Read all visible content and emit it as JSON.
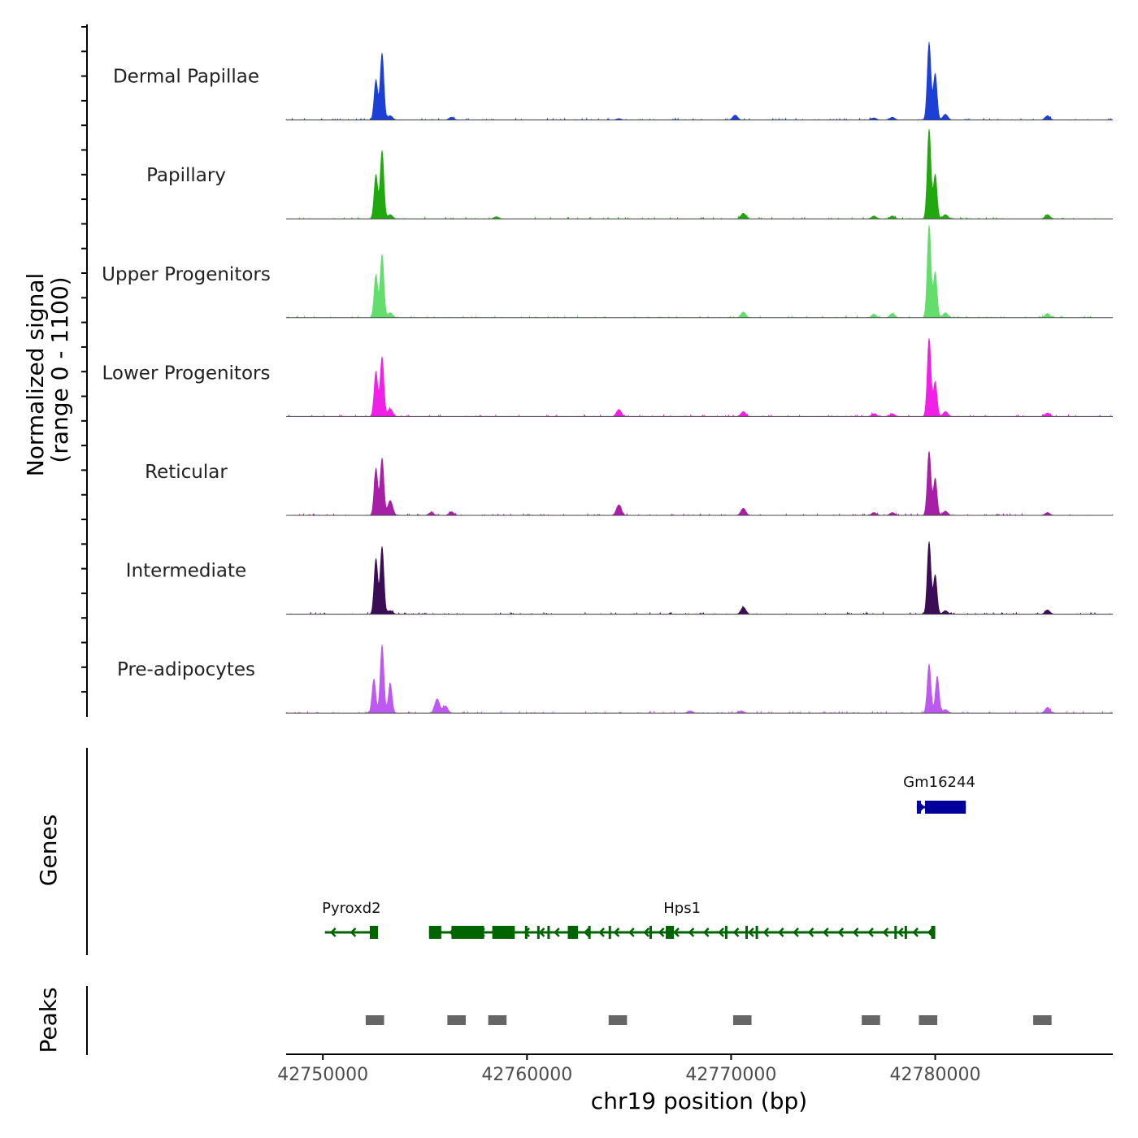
{
  "chart_data": {
    "type": "area",
    "title": "",
    "ylabel_line1": "Normalized signal",
    "ylabel_line2": "(range 0 - 1100)",
    "genes_label": "Genes",
    "peaks_label": "Peaks",
    "xlabel": "chr19 position (bp)",
    "chromosome": "chr19",
    "xlim": [
      42748200,
      42788700
    ],
    "ylim": [
      0,
      1100
    ],
    "x_ticks": [
      42750000,
      42760000,
      42770000,
      42780000
    ],
    "x_tick_labels": [
      "42750000",
      "42760000",
      "42770000",
      "42780000"
    ],
    "tracks": [
      {
        "name": "Dermal Papillae",
        "color": "#1c3fd6",
        "peaks": [
          [
            42752600,
            560
          ],
          [
            42752900,
            940
          ],
          [
            42753300,
            60
          ],
          [
            42756300,
            40
          ],
          [
            42764500,
            20
          ],
          [
            42770200,
            70
          ],
          [
            42777000,
            30
          ],
          [
            42777900,
            40
          ],
          [
            42779700,
            1080
          ],
          [
            42780000,
            650
          ],
          [
            42780500,
            80
          ],
          [
            42785500,
            60
          ]
        ]
      },
      {
        "name": "Papillary",
        "color": "#21a80f",
        "peaks": [
          [
            42752600,
            620
          ],
          [
            42752900,
            960
          ],
          [
            42753300,
            60
          ],
          [
            42758500,
            30
          ],
          [
            42770600,
            80
          ],
          [
            42777000,
            40
          ],
          [
            42777900,
            40
          ],
          [
            42779700,
            1260
          ],
          [
            42780000,
            620
          ],
          [
            42780500,
            60
          ],
          [
            42785500,
            60
          ]
        ]
      },
      {
        "name": "Upper Progenitors",
        "color": "#63dd6c",
        "peaks": [
          [
            42752600,
            600
          ],
          [
            42752900,
            890
          ],
          [
            42753300,
            70
          ],
          [
            42770600,
            80
          ],
          [
            42777000,
            50
          ],
          [
            42777900,
            60
          ],
          [
            42779700,
            1300
          ],
          [
            42780000,
            640
          ],
          [
            42780500,
            70
          ],
          [
            42785500,
            60
          ]
        ]
      },
      {
        "name": "Lower Progenitors",
        "color": "#f020e6",
        "peaks": [
          [
            42752600,
            630
          ],
          [
            42752900,
            840
          ],
          [
            42753300,
            110
          ],
          [
            42764500,
            100
          ],
          [
            42770600,
            70
          ],
          [
            42777000,
            40
          ],
          [
            42777900,
            40
          ],
          [
            42779700,
            1100
          ],
          [
            42780000,
            490
          ],
          [
            42780500,
            70
          ],
          [
            42785500,
            50
          ]
        ]
      },
      {
        "name": "Reticular",
        "color": "#a61fa6",
        "peaks": [
          [
            42752600,
            660
          ],
          [
            42752900,
            800
          ],
          [
            42753300,
            210
          ],
          [
            42755300,
            40
          ],
          [
            42756300,
            50
          ],
          [
            42764500,
            150
          ],
          [
            42770600,
            100
          ],
          [
            42777000,
            40
          ],
          [
            42777900,
            40
          ],
          [
            42779700,
            900
          ],
          [
            42780000,
            520
          ],
          [
            42780500,
            60
          ],
          [
            42785500,
            40
          ]
        ]
      },
      {
        "name": "Intermediate",
        "color": "#3b0d57",
        "peaks": [
          [
            42752600,
            780
          ],
          [
            42752900,
            950
          ],
          [
            42753300,
            50
          ],
          [
            42770600,
            100
          ],
          [
            42779700,
            1020
          ],
          [
            42780000,
            550
          ],
          [
            42780500,
            50
          ],
          [
            42785500,
            60
          ]
        ]
      },
      {
        "name": "Pre-adipocytes",
        "color": "#bd58f0",
        "peaks": [
          [
            42752500,
            480
          ],
          [
            42752900,
            960
          ],
          [
            42753300,
            420
          ],
          [
            42755600,
            200
          ],
          [
            42756000,
            100
          ],
          [
            42768000,
            30
          ],
          [
            42770500,
            30
          ],
          [
            42779700,
            690
          ],
          [
            42780100,
            520
          ],
          [
            42780500,
            50
          ],
          [
            42785500,
            80
          ]
        ]
      }
    ],
    "genes": [
      {
        "name": "Gm16244",
        "strand": "+",
        "start": 42779100,
        "end": 42781500,
        "color": "#00009c",
        "exons": [
          [
            42779100,
            42779300
          ],
          [
            42779500,
            42781500
          ]
        ]
      },
      {
        "name": "Pyroxd2",
        "strand": "-",
        "start": 42750100,
        "end": 42752700,
        "color": "#006400",
        "exons": [
          [
            42752300,
            42752700
          ]
        ]
      },
      {
        "name": "Hps1",
        "strand": "-",
        "start": 42755200,
        "end": 42780000,
        "color": "#006400",
        "exons": [
          [
            42755200,
            42755800
          ],
          [
            42756300,
            42757900
          ],
          [
            42758300,
            42759400
          ],
          [
            42759900,
            42760000
          ],
          [
            42760500,
            42760600
          ],
          [
            42761000,
            42761100
          ],
          [
            42762000,
            42762500
          ],
          [
            42763000,
            42763100
          ],
          [
            42764000,
            42764100
          ],
          [
            42766000,
            42766100
          ],
          [
            42766800,
            42767200
          ],
          [
            42769700,
            42769800
          ],
          [
            42770700,
            42770800
          ],
          [
            42771200,
            42771300
          ],
          [
            42778000,
            42778100
          ],
          [
            42778500,
            42778600
          ],
          [
            42779800,
            42780000
          ]
        ]
      }
    ],
    "peaks": [
      [
        42752100,
        42753000
      ],
      [
        42756100,
        42757000
      ],
      [
        42758100,
        42759000
      ],
      [
        42764000,
        42764900
      ],
      [
        42770100,
        42771000
      ],
      [
        42776400,
        42777300
      ],
      [
        42779200,
        42780100
      ],
      [
        42784800,
        42785700
      ]
    ]
  }
}
